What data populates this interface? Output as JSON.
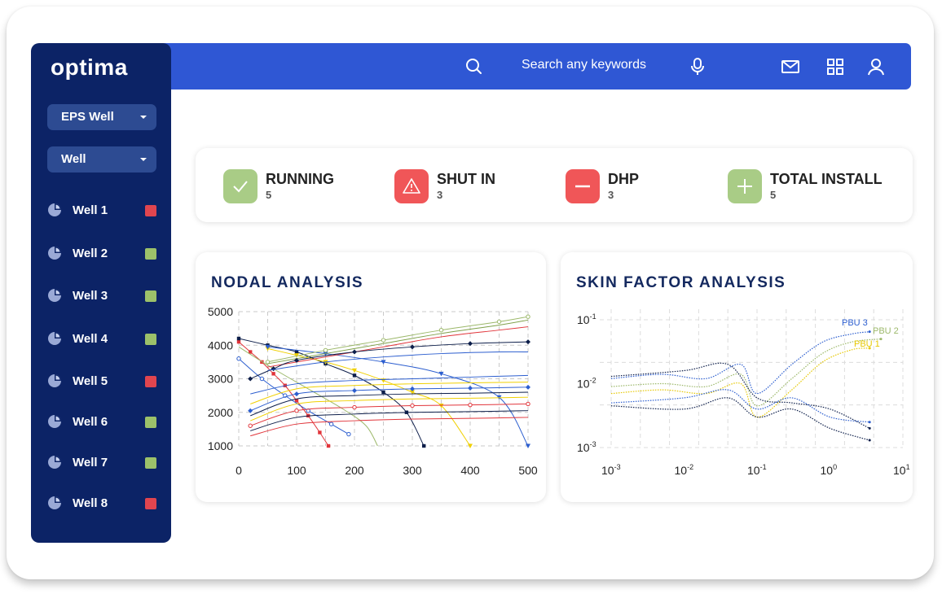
{
  "app": {
    "logo": "optima"
  },
  "sidebar": {
    "dropdowns": [
      {
        "label": "EPS Well"
      },
      {
        "label": "Well"
      }
    ],
    "wells": [
      {
        "label": "Well 1",
        "status_color": "#e0454f"
      },
      {
        "label": "Well 2",
        "status_color": "#9cc16a"
      },
      {
        "label": "Well 3",
        "status_color": "#9cc16a"
      },
      {
        "label": "Well 4",
        "status_color": "#9cc16a"
      },
      {
        "label": "Well 5",
        "status_color": "#e0454f"
      },
      {
        "label": "Well 6",
        "status_color": "#9cc16a"
      },
      {
        "label": "Well 7",
        "status_color": "#9cc16a"
      },
      {
        "label": "Well 8",
        "status_color": "#e0454f"
      }
    ]
  },
  "header": {
    "search_placeholder": "Search any keywords",
    "icons": [
      "search-icon",
      "microphone-icon",
      "mail-icon",
      "grid-icon",
      "user-icon"
    ]
  },
  "stats": [
    {
      "label": "RUNNING",
      "value": "5",
      "icon": "check-icon",
      "color": "#a9cc86"
    },
    {
      "label": "SHUT IN",
      "value": "3",
      "icon": "warning-icon",
      "color": "#f05658"
    },
    {
      "label": "DHP",
      "value": "3",
      "icon": "minus-icon",
      "color": "#f05658"
    },
    {
      "label": "TOTAL INSTALL",
      "value": "5",
      "icon": "plus-icon",
      "color": "#a9cc86"
    }
  ],
  "colors": {
    "sidebar_bg": "#0c2366",
    "topbar_bg": "#2f57d4",
    "title_color": "#14295f"
  },
  "chart_data": [
    {
      "type": "line",
      "title": "NODAL ANALYSIS",
      "x_ticks": [
        "0",
        "100",
        "200",
        "300",
        "400",
        "500"
      ],
      "y_ticks": [
        "5000",
        "4000",
        "3000",
        "2000",
        "1000"
      ],
      "xlim": [
        0,
        500
      ],
      "ylim": [
        1000,
        5000
      ],
      "grid": true,
      "series": [
        {
          "color": "#e1343a",
          "marker": "square",
          "points": [
            [
              0,
              4100
            ],
            [
              20,
              3800
            ],
            [
              40,
              3500
            ],
            [
              60,
              3150
            ],
            [
              80,
              2800
            ],
            [
              100,
              2350
            ],
            [
              120,
              1900
            ],
            [
              140,
              1400
            ],
            [
              155,
              1000
            ]
          ]
        },
        {
          "color": "#0d1e4a",
          "marker": "square",
          "points": [
            [
              0,
              4200
            ],
            [
              50,
              4000
            ],
            [
              100,
              3800
            ],
            [
              150,
              3450
            ],
            [
              200,
              3100
            ],
            [
              250,
              2600
            ],
            [
              290,
              2000
            ],
            [
              320,
              1000
            ]
          ]
        },
        {
          "color": "#f0d000",
          "marker": "triangle",
          "points": [
            [
              50,
              3900
            ],
            [
              100,
              3700
            ],
            [
              150,
              3500
            ],
            [
              200,
              3250
            ],
            [
              250,
              2950
            ],
            [
              300,
              2600
            ],
            [
              350,
              2200
            ],
            [
              400,
              1000
            ]
          ]
        },
        {
          "color": "#2c5ecf",
          "marker": "triangle",
          "points": [
            [
              50,
              3950
            ],
            [
              150,
              3750
            ],
            [
              250,
              3500
            ],
            [
              350,
              3150
            ],
            [
              450,
              2450
            ],
            [
              500,
              1000
            ]
          ]
        },
        {
          "color": "#2c5ecf",
          "marker": "circle",
          "points": [
            [
              0,
              3600
            ],
            [
              40,
              3000
            ],
            [
              80,
              2500
            ],
            [
              120,
              2050
            ],
            [
              160,
              1650
            ],
            [
              190,
              1350
            ]
          ]
        },
        {
          "color": "#9cb86a",
          "marker": "none",
          "points": [
            [
              0,
              3950
            ],
            [
              60,
              3300
            ],
            [
              120,
              2700
            ],
            [
              180,
              2100
            ],
            [
              220,
              1600
            ],
            [
              240,
              1000
            ]
          ]
        },
        {
          "color": "#9cb86a",
          "marker": "circle",
          "points": [
            [
              50,
              3500
            ],
            [
              150,
              3850
            ],
            [
              250,
              4150
            ],
            [
              350,
              4450
            ],
            [
              450,
              4700
            ],
            [
              500,
              4850
            ]
          ]
        },
        {
          "color": "#7fa04a",
          "marker": "none",
          "points": [
            [
              50,
              3450
            ],
            [
              150,
              3750
            ],
            [
              250,
              4050
            ],
            [
              350,
              4350
            ],
            [
              450,
              4600
            ],
            [
              500,
              4750
            ]
          ]
        },
        {
          "color": "#e1343a",
          "marker": "none",
          "points": [
            [
              50,
              3350
            ],
            [
              150,
              3650
            ],
            [
              250,
              3950
            ],
            [
              350,
              4250
            ],
            [
              450,
              4450
            ],
            [
              500,
              4550
            ]
          ]
        },
        {
          "color": "#0d1e4a",
          "marker": "diamond",
          "points": [
            [
              20,
              3000
            ],
            [
              60,
              3300
            ],
            [
              100,
              3550
            ],
            [
              200,
              3800
            ],
            [
              300,
              3950
            ],
            [
              400,
              4050
            ],
            [
              500,
              4100
            ]
          ]
        },
        {
          "color": "#2c5ecf",
          "marker": "none",
          "points": [
            [
              50,
              3250
            ],
            [
              150,
              3500
            ],
            [
              250,
              3650
            ],
            [
              350,
              3750
            ],
            [
              450,
              3800
            ],
            [
              500,
              3800
            ]
          ]
        },
        {
          "color": "#2c5ecf",
          "marker": "none",
          "points": [
            [
              20,
              2550
            ],
            [
              100,
              2850
            ],
            [
              200,
              2950
            ],
            [
              300,
              3000
            ],
            [
              400,
              3050
            ],
            [
              500,
              3100
            ]
          ]
        },
        {
          "color": "#f0d000",
          "marker": "none",
          "points": [
            [
              20,
              2250
            ],
            [
              100,
              2700
            ],
            [
              200,
              2800
            ],
            [
              300,
              2850
            ],
            [
              400,
              2880
            ],
            [
              500,
              2900
            ]
          ]
        },
        {
          "color": "#2c5ecf",
          "marker": "diamond",
          "points": [
            [
              20,
              2050
            ],
            [
              100,
              2550
            ],
            [
              200,
              2650
            ],
            [
              300,
              2700
            ],
            [
              400,
              2720
            ],
            [
              500,
              2750
            ]
          ]
        },
        {
          "color": "#0d1e4a",
          "marker": "none",
          "points": [
            [
              20,
              1900
            ],
            [
              100,
              2400
            ],
            [
              200,
              2500
            ],
            [
              300,
              2550
            ],
            [
              400,
              2570
            ],
            [
              500,
              2600
            ]
          ]
        },
        {
          "color": "#f0d000",
          "marker": "none",
          "points": [
            [
              20,
              1750
            ],
            [
              100,
              2250
            ],
            [
              200,
              2350
            ],
            [
              300,
              2400
            ],
            [
              400,
              2420
            ],
            [
              500,
              2450
            ]
          ]
        },
        {
          "color": "#e1343a",
          "marker": "circle",
          "points": [
            [
              20,
              1600
            ],
            [
              100,
              2050
            ],
            [
              200,
              2150
            ],
            [
              300,
              2200
            ],
            [
              400,
              2220
            ],
            [
              500,
              2250
            ]
          ]
        },
        {
          "color": "#0d1e4a",
          "marker": "none",
          "points": [
            [
              20,
              1450
            ],
            [
              100,
              1850
            ],
            [
              200,
              1950
            ],
            [
              300,
              2000
            ],
            [
              400,
              2020
            ],
            [
              500,
              2050
            ]
          ]
        },
        {
          "color": "#e1343a",
          "marker": "none",
          "points": [
            [
              20,
              1300
            ],
            [
              100,
              1650
            ],
            [
              200,
              1750
            ],
            [
              300,
              1800
            ],
            [
              400,
              1820
            ],
            [
              500,
              1850
            ]
          ]
        }
      ]
    },
    {
      "type": "line",
      "title": "SKIN FACTOR ANALYSIS",
      "x_ticks": [
        "10",
        "10",
        "10",
        "10",
        "10"
      ],
      "x_tick_exponents": [
        "-3",
        "-2",
        "-1",
        "0",
        "1"
      ],
      "y_ticks": [
        "10",
        "10",
        "10"
      ],
      "y_tick_exponents": [
        "-1",
        "-2",
        "-3"
      ],
      "x_scale": "log",
      "y_scale": "log",
      "xlim": [
        0.001,
        10
      ],
      "ylim": [
        0.001,
        0.1
      ],
      "grid": true,
      "series": [
        {
          "name": "PBU 3",
          "color": "#2c5ecf",
          "points": [
            [
              0.001,
              0.012
            ],
            [
              0.005,
              0.014
            ],
            [
              0.02,
              0.012
            ],
            [
              0.06,
              0.02
            ],
            [
              0.1,
              0.007
            ],
            [
              0.3,
              0.02
            ],
            [
              0.8,
              0.045
            ],
            [
              2,
              0.06
            ],
            [
              3.5,
              0.065
            ]
          ]
        },
        {
          "name": "PBU 2",
          "color": "#9cb86a",
          "points": [
            [
              0.001,
              0.009
            ],
            [
              0.005,
              0.01
            ],
            [
              0.02,
              0.009
            ],
            [
              0.06,
              0.014
            ],
            [
              0.1,
              0.0045
            ],
            [
              0.3,
              0.012
            ],
            [
              0.8,
              0.03
            ],
            [
              2,
              0.045
            ],
            [
              5,
              0.05
            ]
          ]
        },
        {
          "name": "PBU 1",
          "color": "#e6c800",
          "points": [
            [
              0.001,
              0.007
            ],
            [
              0.005,
              0.008
            ],
            [
              0.02,
              0.007
            ],
            [
              0.06,
              0.01
            ],
            [
              0.1,
              0.003
            ],
            [
              0.3,
              0.008
            ],
            [
              0.8,
              0.022
            ],
            [
              2,
              0.034
            ],
            [
              3.5,
              0.036
            ]
          ]
        },
        {
          "name": "",
          "color": "#0d1e4a",
          "points": [
            [
              0.001,
              0.013
            ],
            [
              0.01,
              0.016
            ],
            [
              0.04,
              0.02
            ],
            [
              0.1,
              0.006
            ],
            [
              0.3,
              0.005
            ],
            [
              1,
              0.004
            ],
            [
              3.5,
              0.002
            ]
          ]
        },
        {
          "name": "",
          "color": "#2c5ecf",
          "points": [
            [
              0.001,
              0.005
            ],
            [
              0.01,
              0.006
            ],
            [
              0.04,
              0.008
            ],
            [
              0.1,
              0.004
            ],
            [
              0.3,
              0.006
            ],
            [
              1,
              0.003
            ],
            [
              3.5,
              0.0025
            ]
          ]
        },
        {
          "name": "",
          "color": "#0d1e4a",
          "points": [
            [
              0.001,
              0.0045
            ],
            [
              0.01,
              0.004
            ],
            [
              0.04,
              0.006
            ],
            [
              0.1,
              0.003
            ],
            [
              0.3,
              0.004
            ],
            [
              1,
              0.002
            ],
            [
              3.5,
              0.0013
            ]
          ]
        }
      ]
    }
  ]
}
